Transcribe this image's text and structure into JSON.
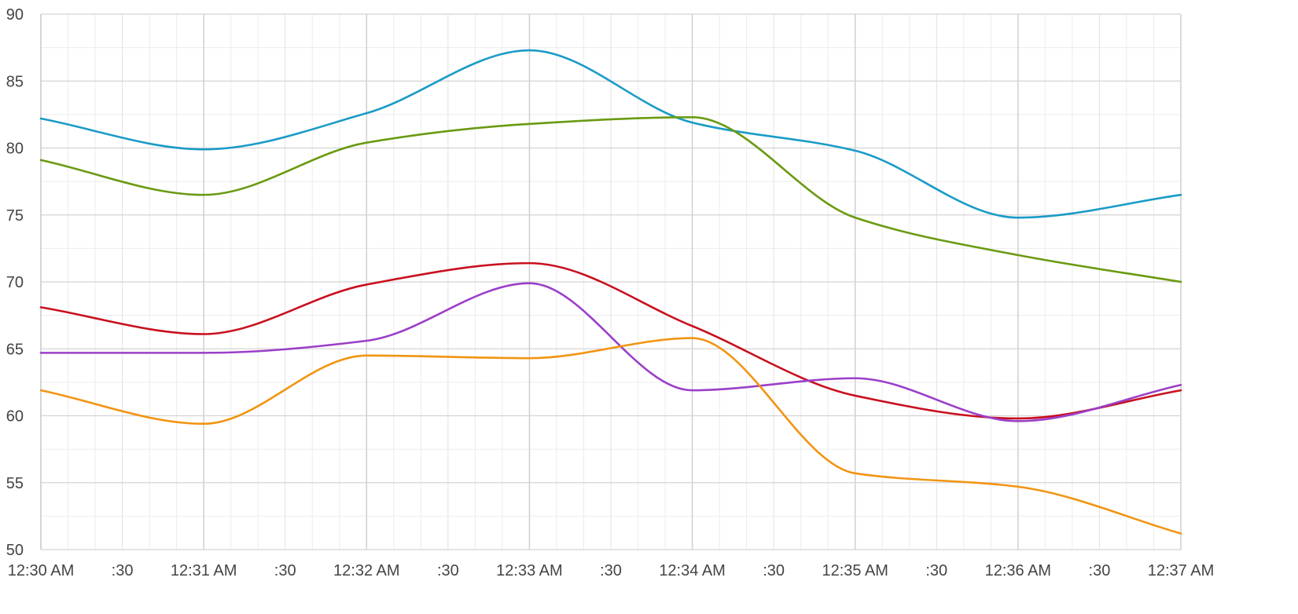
{
  "chart_data": {
    "type": "line",
    "title": "",
    "xlabel": "",
    "ylabel": "",
    "smooth": true,
    "grid": true,
    "legend": "none",
    "ylim": [
      50,
      90
    ],
    "y_ticks": [
      "90",
      "85",
      "80",
      "75",
      "70",
      "65",
      "60",
      "55",
      "50"
    ],
    "x_ticks": [
      "12:30 AM",
      ":30",
      "12:31 AM",
      ":30",
      "12:32 AM",
      ":30",
      "12:33 AM",
      ":30",
      "12:34 AM",
      ":30",
      "12:35 AM",
      ":30",
      "12:36 AM",
      ":30",
      "12:37 AM"
    ],
    "x_range_seconds": [
      0,
      420
    ],
    "x_values_seconds": [
      0,
      60,
      120,
      180,
      240,
      300,
      360,
      420
    ],
    "series": [
      {
        "color": "#1a9bc7",
        "values": [
          82.2,
          79.9,
          82.6,
          87.3,
          81.9,
          79.8,
          74.8,
          76.5
        ]
      },
      {
        "color": "#6a9a12",
        "values": [
          79.1,
          76.5,
          80.4,
          81.8,
          82.3,
          74.8,
          72.0,
          70.0
        ]
      },
      {
        "color": "#c8101e",
        "values": [
          68.1,
          66.1,
          69.8,
          71.4,
          66.7,
          61.5,
          59.8,
          61.9
        ]
      },
      {
        "color": "#9b3fc9",
        "values": [
          64.7,
          64.7,
          65.6,
          69.9,
          61.9,
          62.8,
          59.6,
          62.3
        ]
      },
      {
        "color": "#f29412",
        "values": [
          61.9,
          59.4,
          64.5,
          64.3,
          65.8,
          55.7,
          54.7,
          51.2
        ]
      }
    ]
  }
}
